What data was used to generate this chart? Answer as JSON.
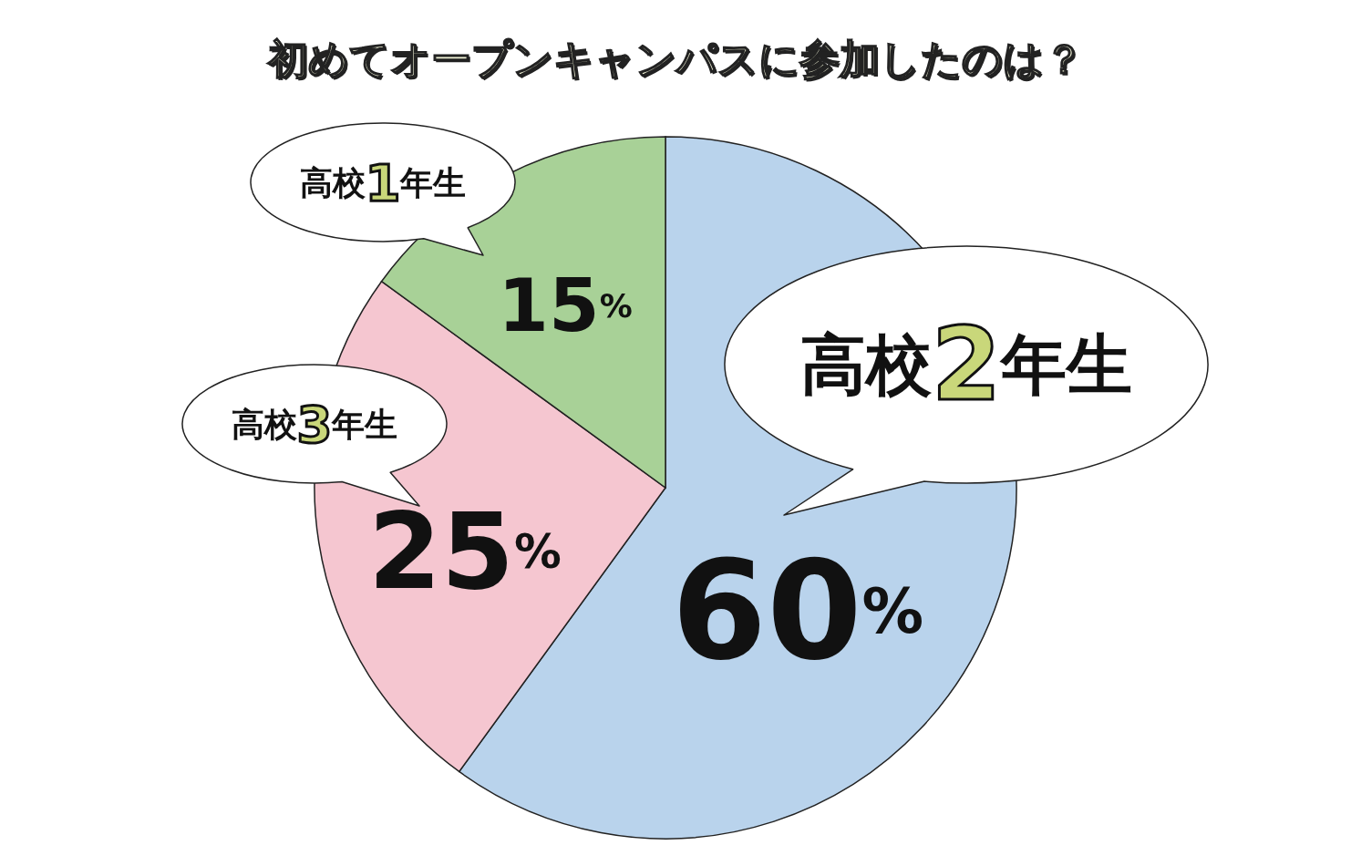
{
  "chart_data": {
    "type": "pie",
    "title": "初めてオープンキャンパスに参加したのは？",
    "categories": [
      "高校2年生",
      "高校3年生",
      "高校1年生"
    ],
    "values": [
      60,
      25,
      15
    ],
    "colors": [
      "#b9d3ec",
      "#f5c6d0",
      "#a8d197"
    ],
    "value_labels": [
      "60%",
      "25%",
      "15%"
    ]
  }
}
